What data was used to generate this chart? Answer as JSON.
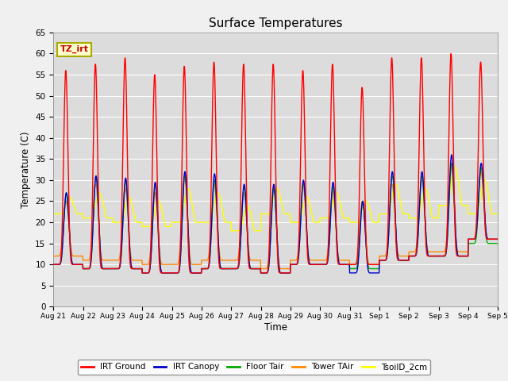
{
  "title": "Surface Temperatures",
  "xlabel": "Time",
  "ylabel": "Temperature (C)",
  "ylim": [
    0,
    65
  ],
  "yticks": [
    0,
    5,
    10,
    15,
    20,
    25,
    30,
    35,
    40,
    45,
    50,
    55,
    60,
    65
  ],
  "fig_facecolor": "#f0f0f0",
  "plot_bg_color": "#dcdcdc",
  "series": [
    {
      "label": "IRT Ground",
      "color": "#ff0000"
    },
    {
      "label": "IRT Canopy",
      "color": "#0000cc"
    },
    {
      "label": "Floor Tair",
      "color": "#00aa00"
    },
    {
      "label": "Tower TAir",
      "color": "#ff8800"
    },
    {
      "label": "TsoilD_2cm",
      "color": "#ffff00"
    }
  ],
  "tz_label": "TZ_irt",
  "x_tick_labels": [
    "Aug 21",
    "Aug 22",
    "Aug 23",
    "Aug 24",
    "Aug 25",
    "Aug 26",
    "Aug 27",
    "Aug 28",
    "Aug 29",
    "Aug 30",
    "Aug 31",
    "Sep 1",
    "Sep 2",
    "Sep 3",
    "Sep 4",
    "Sep 5"
  ],
  "n_days": 15,
  "ppd": 144,
  "day_peaks": {
    "irt_ground": [
      56,
      57.5,
      59,
      55,
      57,
      58,
      57.5,
      57.5,
      56,
      57.5,
      52,
      59,
      59,
      60,
      58
    ],
    "irt_canopy": [
      27,
      31,
      30.5,
      29.5,
      32,
      31.5,
      29,
      29,
      30,
      29.5,
      25,
      32,
      32,
      36,
      34
    ],
    "floor_tair": [
      27,
      31,
      30,
      29,
      31.5,
      30,
      28.5,
      28,
      29.5,
      28.5,
      25,
      31,
      31,
      34,
      33
    ],
    "tower_tair": [
      25,
      29,
      28,
      27,
      31,
      29,
      27,
      28.5,
      29,
      27.5,
      25,
      29,
      30,
      33,
      32
    ],
    "tsoil_2cm": [
      26,
      27,
      26,
      25,
      28,
      27,
      24,
      28,
      26,
      27,
      25,
      29,
      28,
      33,
      30
    ]
  },
  "day_mins": {
    "irt_ground": [
      10,
      9,
      9,
      8,
      8,
      9,
      9,
      8,
      10,
      10,
      10,
      11,
      12,
      12,
      16
    ],
    "irt_canopy": [
      10,
      9,
      9,
      8,
      8,
      9,
      9,
      8,
      10,
      10,
      8,
      11,
      12,
      12,
      16
    ],
    "floor_tair": [
      10,
      9,
      9,
      8,
      8,
      9,
      9,
      8,
      10,
      10,
      9,
      11,
      12,
      12,
      15
    ],
    "tower_tair": [
      12,
      11,
      11,
      10,
      10,
      11,
      11,
      9,
      11,
      11,
      10,
      12,
      13,
      13,
      16
    ],
    "tsoil_2cm": [
      22,
      21,
      20,
      19,
      20,
      20,
      18,
      22,
      20,
      21,
      20,
      22,
      21,
      24,
      22
    ]
  }
}
